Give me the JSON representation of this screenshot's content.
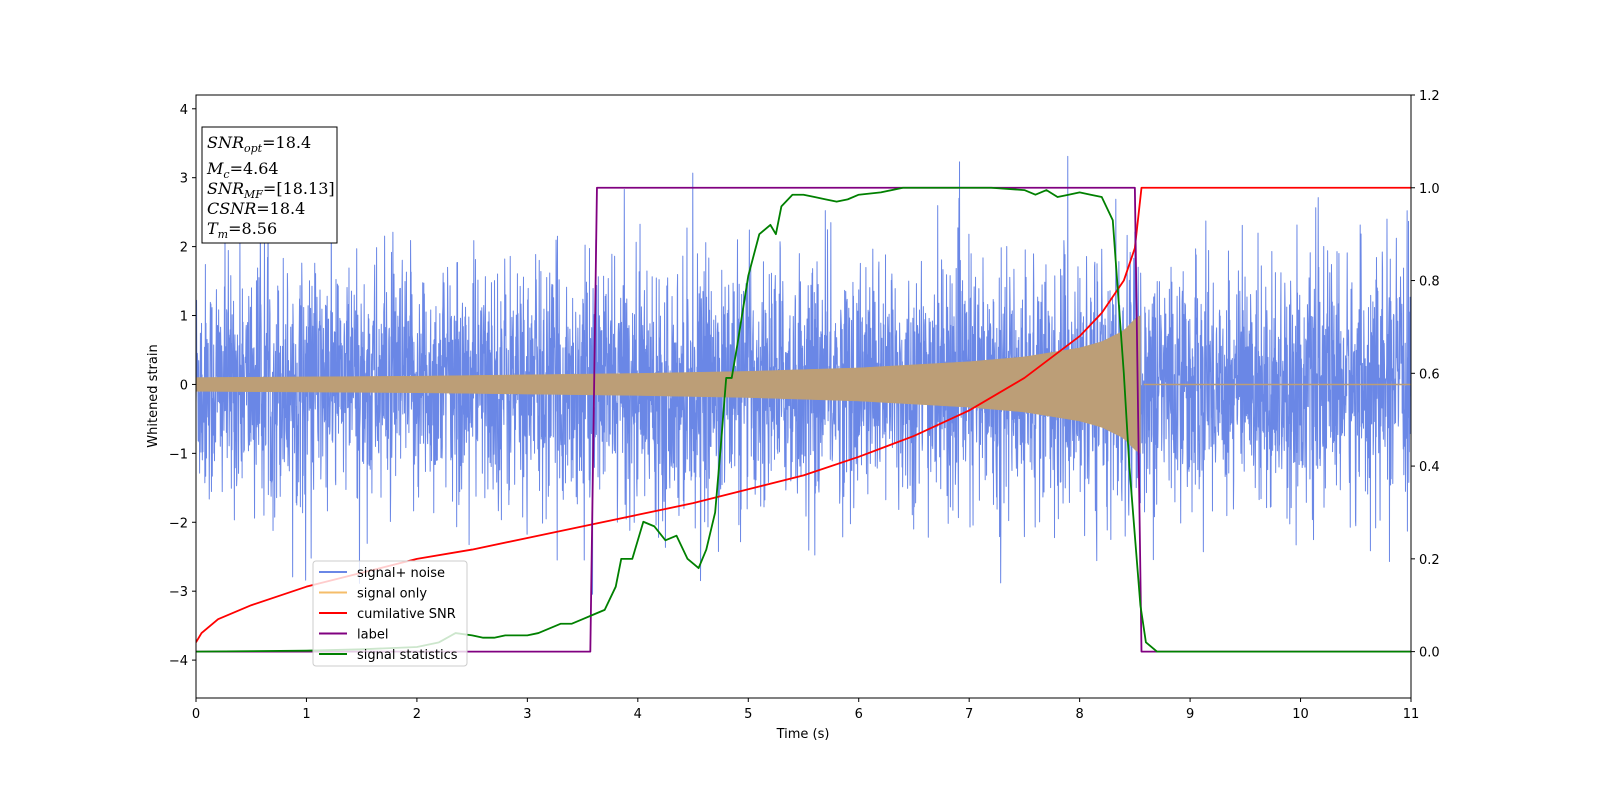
{
  "chart_data": {
    "type": "line",
    "xlabel": "Time (s)",
    "ylabel": "Whitened strain",
    "xlim": [
      0,
      11
    ],
    "ylim": [
      -4.55,
      4.2
    ],
    "y2lim": [
      -0.1,
      1.2
    ],
    "xticks": [
      "0",
      "1",
      "2",
      "3",
      "4",
      "5",
      "6",
      "7",
      "8",
      "9",
      "10",
      "11"
    ],
    "yticks": [
      "−4",
      "−3",
      "−2",
      "−1",
      "0",
      "1",
      "2",
      "3",
      "4"
    ],
    "y2ticks": [
      "0.0",
      "0.2",
      "0.4",
      "0.6",
      "0.8",
      "1.0",
      "1.2"
    ],
    "grid": false,
    "legend_placement": "lower-left",
    "colors": {
      "signal_noise": "#6a87e6",
      "signal_only": "#f5bd6a",
      "overlap": "#bc9e77",
      "cumulative_snr": "#ff0000",
      "label": "#800080",
      "signal_statistics": "#008000"
    },
    "series": [
      {
        "name": "signal+ noise",
        "axis": "left",
        "noise_std": 0.85,
        "x_range": [
          0,
          11
        ]
      },
      {
        "name": "signal only",
        "axis": "left",
        "envelope": {
          "t": [
            0,
            1,
            2,
            3,
            4,
            5,
            6,
            7,
            7.5,
            8,
            8.2,
            8.4,
            8.5,
            8.55,
            8.56
          ],
          "amp": [
            0.1,
            0.11,
            0.12,
            0.14,
            0.16,
            0.19,
            0.24,
            0.33,
            0.4,
            0.53,
            0.62,
            0.78,
            0.95,
            1.0,
            0.0
          ]
        }
      },
      {
        "name": "cumilative SNR",
        "axis": "right",
        "x": [
          0,
          0.05,
          0.2,
          0.5,
          1,
          1.5,
          2,
          2.5,
          3,
          3.5,
          4,
          4.5,
          5,
          5.5,
          6,
          6.5,
          7,
          7.5,
          8,
          8.2,
          8.4,
          8.5,
          8.56,
          11
        ],
        "y": [
          0.02,
          0.04,
          0.07,
          0.1,
          0.14,
          0.17,
          0.2,
          0.22,
          0.245,
          0.27,
          0.295,
          0.32,
          0.35,
          0.38,
          0.42,
          0.465,
          0.52,
          0.59,
          0.68,
          0.73,
          0.8,
          0.87,
          1.0,
          1.0
        ]
      },
      {
        "name": "label",
        "axis": "right",
        "x": [
          0,
          3.57,
          3.63,
          8.5,
          8.56,
          11
        ],
        "y": [
          0,
          0,
          1,
          1,
          0,
          0
        ]
      },
      {
        "name": "signal statistics",
        "axis": "right",
        "x": [
          0,
          1,
          1.5,
          2,
          2.2,
          2.35,
          2.5,
          2.6,
          2.7,
          2.8,
          3.0,
          3.1,
          3.2,
          3.3,
          3.4,
          3.5,
          3.6,
          3.7,
          3.8,
          3.85,
          3.95,
          4.05,
          4.15,
          4.25,
          4.35,
          4.45,
          4.55,
          4.62,
          4.7,
          4.75,
          4.8,
          4.85,
          4.9,
          5.0,
          5.1,
          5.2,
          5.25,
          5.3,
          5.4,
          5.5,
          5.6,
          5.7,
          5.8,
          5.9,
          6.0,
          6.2,
          6.4,
          6.6,
          6.8,
          7.0,
          7.2,
          7.5,
          7.6,
          7.7,
          7.8,
          7.9,
          8.0,
          8.1,
          8.2,
          8.3,
          8.4,
          8.45,
          8.5,
          8.55,
          8.6,
          8.7,
          11
        ],
        "y": [
          0,
          0.002,
          0.005,
          0.01,
          0.02,
          0.04,
          0.035,
          0.03,
          0.03,
          0.035,
          0.035,
          0.04,
          0.05,
          0.06,
          0.06,
          0.07,
          0.08,
          0.09,
          0.14,
          0.2,
          0.2,
          0.28,
          0.27,
          0.24,
          0.25,
          0.2,
          0.18,
          0.22,
          0.3,
          0.44,
          0.59,
          0.59,
          0.66,
          0.81,
          0.9,
          0.92,
          0.9,
          0.96,
          0.985,
          0.985,
          0.98,
          0.975,
          0.97,
          0.975,
          0.985,
          0.99,
          1.0,
          1.0,
          1.0,
          1.0,
          1.0,
          0.995,
          0.985,
          0.995,
          0.98,
          0.985,
          0.99,
          0.985,
          0.98,
          0.93,
          0.6,
          0.4,
          0.25,
          0.1,
          0.02,
          0.0,
          0.0
        ]
      }
    ]
  },
  "info_box": [
    {
      "sym": "SNR",
      "sub": "opt",
      "val": "=18.4"
    },
    {
      "sym": "M",
      "sub": "c",
      "val": "=4.64"
    },
    {
      "sym": "SNR",
      "sub": "MF",
      "val": "=[18.13]"
    },
    {
      "sym": "CSNR",
      "sub": "",
      "val": "=18.4"
    },
    {
      "sym": "T",
      "sub": "m",
      "val": "=8.56"
    }
  ]
}
